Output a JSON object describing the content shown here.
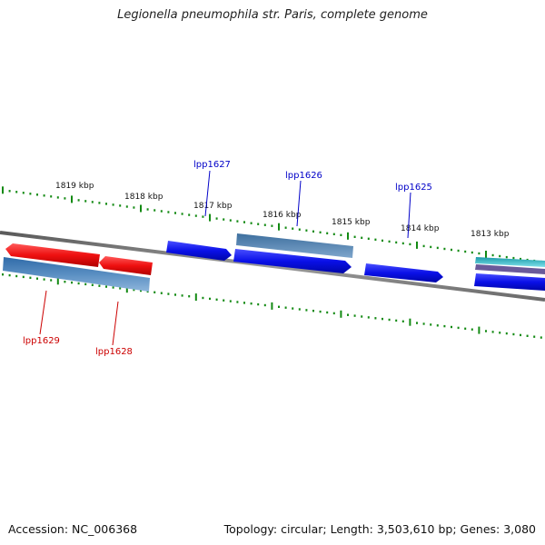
{
  "title": "Legionella pneumophila str. Paris, complete genome",
  "footer": {
    "accession": "Accession: NC_006368",
    "summary": "Topology: circular; Length: 3,503,610 bp; Genes: 3,080"
  },
  "colors": {
    "backbone": "#7a7a7a",
    "tick": "#138a13",
    "forward_gene": "#0a10e8",
    "reverse_gene": "#ee1010",
    "gene_bar": "#5a8fc2",
    "cyan_bar": "#2ab5c5",
    "purple_bar": "#6a5a9a",
    "forward_label": "#0000c8",
    "reverse_label": "#cc0000"
  },
  "scale_labels": [
    "1819 kbp",
    "1818 kbp",
    "1817 kbp",
    "1816 kbp",
    "1815 kbp",
    "1814 kbp",
    "1813 kbp"
  ],
  "gene_labels": {
    "lpp1627": "lpp1627",
    "lpp1626": "lpp1626",
    "lpp1625": "lpp1625",
    "lpp1629": "lpp1629",
    "lpp1628": "lpp1628"
  }
}
